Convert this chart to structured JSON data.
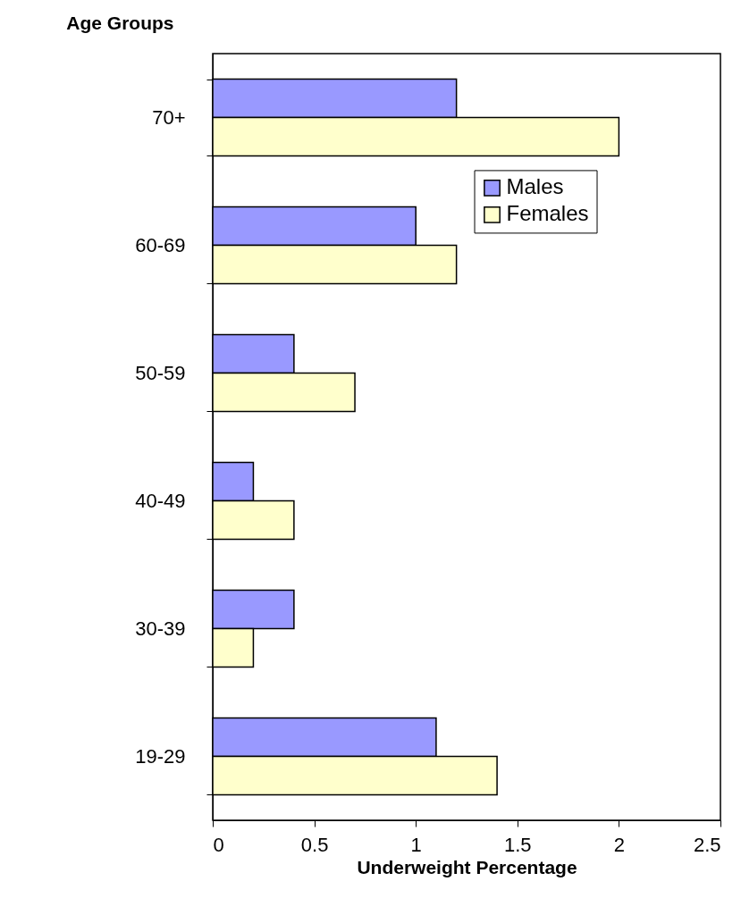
{
  "chart_data": {
    "type": "bar",
    "orientation": "horizontal",
    "xlabel": "Underweight   Percentage",
    "ylabel": "Age Groups",
    "categories": [
      "70+",
      "60-69",
      "50-59",
      "40-49",
      "30-39",
      "19-29"
    ],
    "series": [
      {
        "name": "Males",
        "color": "#9999ff",
        "values": [
          1.2,
          1.0,
          0.4,
          0.2,
          0.4,
          1.1
        ]
      },
      {
        "name": "Females",
        "color": "#ffffcc",
        "values": [
          2.0,
          1.2,
          0.7,
          0.4,
          0.2,
          1.4
        ]
      }
    ],
    "xlim": [
      0,
      2.5
    ],
    "xticks": [
      0,
      0.5,
      1,
      1.5,
      2,
      2.5
    ],
    "grid": false,
    "legend": "top right"
  }
}
